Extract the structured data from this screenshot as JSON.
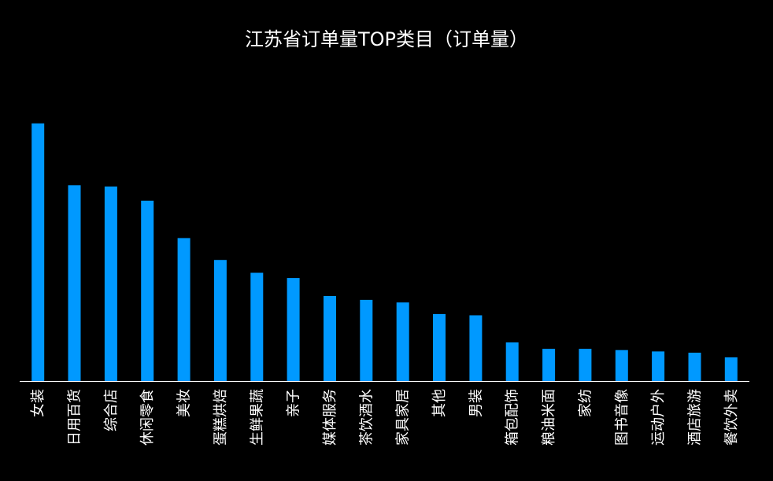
{
  "chart_data": {
    "type": "bar",
    "title": "江苏省订单量TOP类目（订单量）",
    "xlabel": "",
    "ylabel": "",
    "categories": [
      "女装",
      "日用百货",
      "综合店",
      "休闲零食",
      "美妆",
      "蛋糕烘焙",
      "生鲜果蔬",
      "亲子",
      "媒体服务",
      "茶饮酒水",
      "家具家居",
      "其他",
      "男装",
      "箱包配饰",
      "粮油米面",
      "家纺",
      "图书音像",
      "运动户外",
      "酒店旅游",
      "餐饮外卖"
    ],
    "values": [
      100,
      76,
      75.5,
      70,
      55.5,
      47,
      42,
      40,
      33,
      31.5,
      30.5,
      26,
      25.5,
      15,
      12.5,
      12.5,
      12,
      11.5,
      11,
      9.2
    ],
    "ylim": [
      0,
      110
    ],
    "grid": false,
    "legend": "none",
    "bar_color": "#0099ff",
    "axis_color": "#ffffff"
  }
}
